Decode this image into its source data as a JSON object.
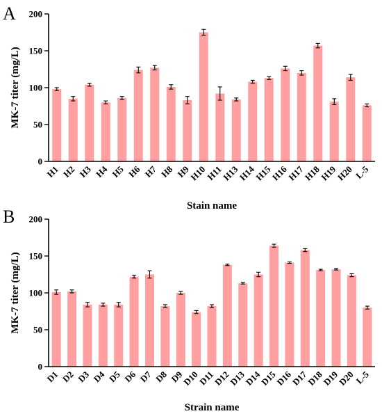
{
  "colors": {
    "bar": "#ff9f9f",
    "axis": "#000000"
  },
  "chart_data": [
    {
      "type": "bar",
      "panel_label": "A",
      "title": "",
      "xlabel": "Stain name",
      "ylabel": "MK-7 titer (mg/L)",
      "ylim": [
        0,
        200
      ],
      "yticks": [
        0,
        50,
        100,
        150,
        200
      ],
      "categories": [
        "H1",
        "H2",
        "H3",
        "H4",
        "H5",
        "H6",
        "H7",
        "H8",
        "H9",
        "H10",
        "H11",
        "H13",
        "H14",
        "H15",
        "H16",
        "H17",
        "H18",
        "H19",
        "H20",
        "L-5"
      ],
      "values": [
        98,
        85,
        104,
        80,
        86,
        124,
        127,
        101,
        83,
        175,
        92,
        84,
        108,
        113,
        126,
        120,
        157,
        81,
        114,
        76
      ],
      "errors": [
        2,
        3,
        2,
        2,
        2,
        4,
        3,
        3,
        5,
        4,
        9,
        2,
        2,
        2,
        3,
        3,
        3,
        4,
        4,
        2
      ]
    },
    {
      "type": "bar",
      "panel_label": "B",
      "title": "",
      "xlabel": "Strain name",
      "ylabel": "MK-7 titer (mg/L)",
      "ylim": [
        0,
        200
      ],
      "yticks": [
        0,
        50,
        100,
        150,
        200
      ],
      "categories": [
        "D1",
        "D2",
        "D3",
        "D4",
        "D5",
        "D6",
        "D7",
        "D8",
        "D9",
        "D10",
        "D11",
        "D12",
        "D13",
        "D14",
        "D15",
        "D16",
        "D17",
        "D18",
        "D19",
        "D20",
        "L-5"
      ],
      "values": [
        101,
        102,
        84,
        84,
        84,
        122,
        125,
        82,
        100,
        74,
        82,
        138,
        113,
        125,
        164,
        141,
        158,
        131,
        132,
        124,
        80
      ],
      "errors": [
        3,
        2,
        3,
        2,
        3,
        2,
        5,
        2,
        2,
        2,
        2,
        1,
        1,
        3,
        2,
        1,
        2,
        1,
        1,
        2,
        2
      ]
    }
  ]
}
